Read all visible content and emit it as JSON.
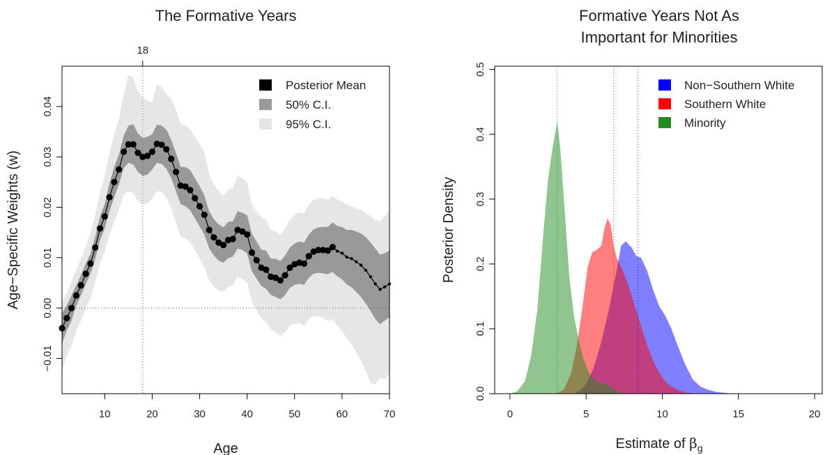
{
  "chart_data": [
    {
      "type": "line",
      "title": "The Formative Years",
      "xlabel": "Age",
      "ylabel": "Age−Specific Weights (w)",
      "xlim": [
        1,
        70
      ],
      "ylim": [
        -0.017,
        0.048
      ],
      "x_ticks": [
        10,
        20,
        30,
        40,
        50,
        60,
        70
      ],
      "y_ticks": [
        -0.01,
        0.0,
        0.01,
        0.02,
        0.03,
        0.04
      ],
      "y_tick_labels": [
        "−0.01",
        "0.00",
        "0.01",
        "0.02",
        "0.03",
        "0.04"
      ],
      "reference_lines": {
        "vertical_x": 18,
        "vertical_label": "18",
        "horizontal_y": 0
      },
      "legend": {
        "position": "top-right",
        "entries": [
          {
            "label": "Posterior Mean",
            "color": "#000000"
          },
          {
            "label": "50% C.I.",
            "color": "#999999"
          },
          {
            "label": "95% C.I.",
            "color": "#e6e6e6"
          }
        ]
      },
      "x": [
        1,
        2,
        3,
        4,
        5,
        6,
        7,
        8,
        9,
        10,
        11,
        12,
        13,
        14,
        15,
        16,
        17,
        18,
        19,
        20,
        21,
        22,
        23,
        24,
        25,
        26,
        27,
        28,
        29,
        30,
        31,
        32,
        33,
        34,
        35,
        36,
        37,
        38,
        39,
        40,
        41,
        42,
        43,
        44,
        45,
        46,
        47,
        48,
        49,
        50,
        51,
        52,
        53,
        54,
        55,
        56,
        57,
        58,
        59,
        60,
        61,
        62,
        63,
        64,
        65,
        66,
        67,
        68,
        69,
        70
      ],
      "mean": [
        -0.004,
        -0.002,
        0.0,
        0.0025,
        0.0045,
        0.0068,
        0.0088,
        0.012,
        0.0158,
        0.0182,
        0.022,
        0.025,
        0.0275,
        0.031,
        0.0325,
        0.0325,
        0.0308,
        0.03,
        0.0302,
        0.031,
        0.0326,
        0.0324,
        0.0315,
        0.0296,
        0.027,
        0.0243,
        0.0241,
        0.0234,
        0.0218,
        0.0202,
        0.0185,
        0.0155,
        0.014,
        0.013,
        0.0125,
        0.0135,
        0.0137,
        0.0155,
        0.0152,
        0.0146,
        0.011,
        0.0095,
        0.008,
        0.0076,
        0.0062,
        0.006,
        0.0055,
        0.0065,
        0.008,
        0.0087,
        0.009,
        0.0088,
        0.0103,
        0.0112,
        0.0115,
        0.0115,
        0.0114,
        0.0121,
        0.0113,
        0.0109,
        0.0101,
        0.0098,
        0.0092,
        0.0085,
        0.0075,
        0.0062,
        0.0048,
        0.0037,
        0.0042,
        0.0048
      ],
      "ci50_low": [
        -0.007,
        -0.0045,
        -0.0025,
        0.0005,
        0.0025,
        0.0048,
        0.0068,
        0.0098,
        0.0134,
        0.0158,
        0.0192,
        0.022,
        0.0245,
        0.0278,
        0.0288,
        0.0285,
        0.027,
        0.0262,
        0.0265,
        0.0275,
        0.0288,
        0.0286,
        0.0276,
        0.0258,
        0.0232,
        0.0206,
        0.0202,
        0.0194,
        0.0178,
        0.0162,
        0.0146,
        0.0118,
        0.0104,
        0.0094,
        0.009,
        0.0099,
        0.0102,
        0.0118,
        0.0115,
        0.0108,
        0.0073,
        0.0058,
        0.0044,
        0.0038,
        0.0026,
        0.0022,
        0.0017,
        0.0026,
        0.004,
        0.0046,
        0.0048,
        0.0046,
        0.006,
        0.0068,
        0.007,
        0.0069,
        0.0067,
        0.0072,
        0.0063,
        0.0057,
        0.0047,
        0.0041,
        0.0032,
        0.0022,
        0.0009,
        -0.0006,
        -0.0022,
        -0.0032,
        -0.0025,
        -0.0018
      ],
      "ci50_high": [
        -0.001,
        0.0005,
        0.0025,
        0.0045,
        0.0065,
        0.0088,
        0.0108,
        0.0142,
        0.0182,
        0.0206,
        0.0248,
        0.028,
        0.0305,
        0.0342,
        0.0362,
        0.0365,
        0.0346,
        0.0338,
        0.034,
        0.0345,
        0.0364,
        0.0362,
        0.0354,
        0.0334,
        0.0308,
        0.028,
        0.028,
        0.0274,
        0.0258,
        0.0242,
        0.0224,
        0.0192,
        0.0176,
        0.0166,
        0.016,
        0.0171,
        0.0172,
        0.0192,
        0.0189,
        0.0184,
        0.0147,
        0.0132,
        0.0116,
        0.0114,
        0.0098,
        0.0098,
        0.0093,
        0.0104,
        0.012,
        0.0128,
        0.0132,
        0.013,
        0.0146,
        0.0156,
        0.016,
        0.0161,
        0.0161,
        0.017,
        0.0163,
        0.0161,
        0.0155,
        0.0155,
        0.0152,
        0.0148,
        0.0141,
        0.013,
        0.0118,
        0.0106,
        0.0109,
        0.0114
      ],
      "ci95_low": [
        -0.0125,
        -0.0095,
        -0.0075,
        -0.0045,
        -0.0025,
        0.0,
        0.0018,
        0.0052,
        0.0088,
        0.0112,
        0.0145,
        0.0172,
        0.0195,
        0.0225,
        0.0232,
        0.0228,
        0.0212,
        0.0205,
        0.0208,
        0.0218,
        0.0232,
        0.023,
        0.022,
        0.0198,
        0.017,
        0.0142,
        0.0138,
        0.013,
        0.0115,
        0.0098,
        0.008,
        0.0055,
        0.0042,
        0.0035,
        0.0032,
        0.0042,
        0.0045,
        0.0062,
        0.0058,
        0.005,
        0.0012,
        -0.0005,
        -0.002,
        -0.0028,
        -0.0042,
        -0.0048,
        -0.0055,
        -0.0048,
        -0.0035,
        -0.003,
        -0.003,
        -0.0035,
        -0.0022,
        -0.0016,
        -0.0016,
        -0.002,
        -0.0025,
        -0.0022,
        -0.0035,
        -0.0045,
        -0.006,
        -0.0072,
        -0.0088,
        -0.0105,
        -0.0125,
        -0.0148,
        -0.0152,
        -0.0138,
        -0.0142,
        -0.013
      ],
      "ci95_high": [
        0.001,
        0.003,
        0.0052,
        0.0075,
        0.0098,
        0.0122,
        0.0148,
        0.0185,
        0.023,
        0.0262,
        0.0308,
        0.0345,
        0.0375,
        0.0425,
        0.0462,
        0.0458,
        0.043,
        0.0418,
        0.0412,
        0.0408,
        0.0445,
        0.0438,
        0.0425,
        0.0415,
        0.0395,
        0.0365,
        0.0362,
        0.0355,
        0.034,
        0.0325,
        0.031,
        0.0265,
        0.0245,
        0.0232,
        0.0222,
        0.0235,
        0.0238,
        0.0262,
        0.0258,
        0.025,
        0.0205,
        0.0192,
        0.018,
        0.0175,
        0.0155,
        0.0152,
        0.0145,
        0.0158,
        0.0175,
        0.0185,
        0.019,
        0.0188,
        0.0205,
        0.0215,
        0.0218,
        0.0218,
        0.0215,
        0.0222,
        0.0215,
        0.0212,
        0.0205,
        0.0202,
        0.0198,
        0.0195,
        0.019,
        0.0182,
        0.0175,
        0.0172,
        0.0182,
        0.0195
      ],
      "large_markers_through_age": 58
    },
    {
      "type": "area",
      "title": "Formative Years Not As\nImportant for Minorities",
      "title_lines": [
        "Formative Years Not As",
        "Important for Minorities"
      ],
      "xlabel_prefix": "Estimate of ",
      "xlabel_symbol": "β",
      "xlabel_subscript": "g",
      "ylabel": "Posterior Density",
      "xlim": [
        -1,
        20.5
      ],
      "ylim": [
        0,
        0.505
      ],
      "x_ticks": [
        0,
        5,
        10,
        15,
        20
      ],
      "y_ticks": [
        0.0,
        0.1,
        0.2,
        0.3,
        0.4,
        0.5
      ],
      "y_tick_labels": [
        "0.0",
        "0.1",
        "0.2",
        "0.3",
        "0.4",
        "0.5"
      ],
      "legend": {
        "position": "top-right",
        "entries": [
          {
            "label": "Non−Southern White",
            "color": "#0000ff"
          },
          {
            "label": "Southern White",
            "color": "#ff0000"
          },
          {
            "label": "Minority",
            "color": "#228b22"
          }
        ]
      },
      "series": [
        {
          "name": "Non−Southern White",
          "color": "#0000ff",
          "mean_line": 8.4,
          "x": [
            4.2,
            4.6,
            5.0,
            5.5,
            6.0,
            6.5,
            7.0,
            7.3,
            7.6,
            8.0,
            8.3,
            8.6,
            9.0,
            9.4,
            9.8,
            10.2,
            10.6,
            11.0,
            11.5,
            12.0,
            12.5,
            13.0,
            13.5,
            14.0,
            14.5,
            15.0
          ],
          "y": [
            0.0,
            0.005,
            0.015,
            0.04,
            0.08,
            0.13,
            0.19,
            0.228,
            0.235,
            0.225,
            0.212,
            0.21,
            0.19,
            0.16,
            0.135,
            0.12,
            0.1,
            0.075,
            0.045,
            0.022,
            0.011,
            0.006,
            0.003,
            0.0015,
            0.0005,
            0.0
          ]
        },
        {
          "name": "Southern White",
          "color": "#ff0000",
          "mean_line": 6.8,
          "x": [
            3.0,
            3.5,
            4.0,
            4.4,
            4.8,
            5.1,
            5.4,
            5.7,
            6.0,
            6.2,
            6.4,
            6.6,
            6.8,
            7.0,
            7.4,
            7.8,
            8.2,
            8.6,
            9.0,
            9.5,
            10.0,
            10.5,
            11.0,
            11.5,
            12.0,
            12.5
          ],
          "y": [
            0.0,
            0.005,
            0.03,
            0.075,
            0.14,
            0.195,
            0.218,
            0.222,
            0.228,
            0.255,
            0.27,
            0.262,
            0.23,
            0.21,
            0.19,
            0.165,
            0.135,
            0.105,
            0.075,
            0.045,
            0.025,
            0.012,
            0.006,
            0.002,
            0.0005,
            0.0
          ]
        },
        {
          "name": "Minority",
          "color": "#228b22",
          "mean_line": 3.1,
          "x": [
            0.0,
            0.5,
            1.0,
            1.4,
            1.8,
            2.2,
            2.5,
            2.8,
            3.0,
            3.1,
            3.3,
            3.6,
            3.9,
            4.2,
            4.5,
            4.8,
            5.2,
            5.6,
            6.0,
            6.4,
            6.8,
            7.2,
            7.5
          ],
          "y": [
            0.0,
            0.004,
            0.02,
            0.06,
            0.13,
            0.25,
            0.33,
            0.38,
            0.405,
            0.42,
            0.38,
            0.28,
            0.18,
            0.12,
            0.085,
            0.055,
            0.032,
            0.02,
            0.017,
            0.014,
            0.008,
            0.003,
            0.0
          ]
        }
      ]
    }
  ]
}
